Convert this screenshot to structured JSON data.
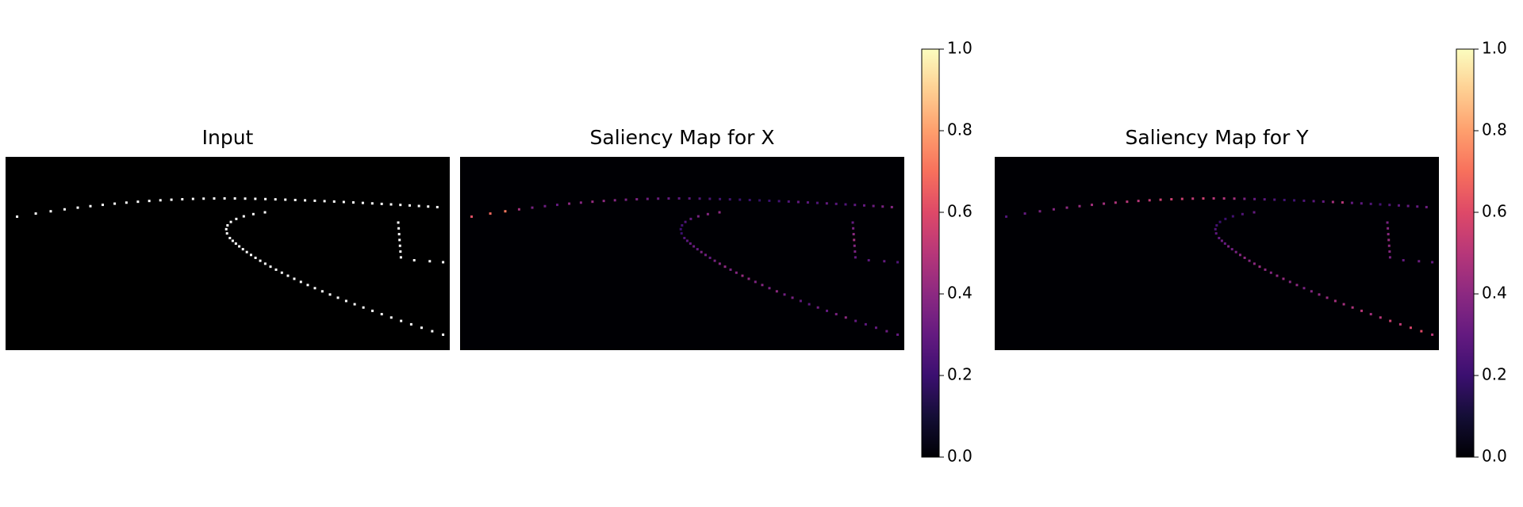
{
  "chart_data": [
    {
      "type": "image",
      "title": "Input",
      "color": "#ffffff"
    },
    {
      "type": "heatmap",
      "title": "Saliency Map for X",
      "colormap": "magma",
      "clim": [
        0,
        1
      ],
      "ticks": [
        {
          "value": 0,
          "label": "0.0"
        },
        0.2,
        0.4,
        0.6,
        0.8,
        {
          "value": 1,
          "label": "1.0"
        }
      ],
      "values": [
        0.62,
        0.68,
        0.72,
        0.45,
        0.35,
        0.32,
        0.3,
        0.4,
        0.38,
        0.42,
        0.4,
        0.38,
        0.35,
        0.36,
        0.33,
        0.32,
        0.3,
        0.28,
        0.27,
        0.25,
        0.24,
        0.22,
        0.22,
        0.2,
        0.2,
        0.18,
        0.2,
        0.22,
        0.25,
        0.3,
        0.28,
        0.25,
        0.3,
        0.27,
        0.25,
        0.28,
        0.3,
        0.32,
        0.35,
        0.38,
        0.4,
        0.38,
        0.35,
        0.3,
        0.25,
        0.22,
        0.2,
        0.2,
        0.25,
        0.28,
        0.3,
        0.32,
        0.3,
        0.35,
        0.33,
        0.3,
        0.35,
        0.38,
        0.4,
        0.35,
        0.38,
        0.42,
        0.4,
        0.36,
        0.38,
        0.35,
        0.4,
        0.33,
        0.35,
        0.3,
        0.28,
        0.33,
        0.3,
        0.35,
        0.4,
        0.3,
        0.28,
        0.3,
        0.32,
        0.3,
        0.3,
        0.35,
        0.4,
        0.45,
        0.38,
        0.35,
        0.3,
        0.28,
        0.3,
        0.25
      ]
    },
    {
      "type": "heatmap",
      "title": "Saliency Map for Y",
      "colormap": "magma",
      "clim": [
        0,
        1
      ],
      "ticks": [
        {
          "value": 0,
          "label": "0.0"
        },
        0.2,
        0.4,
        0.6,
        0.8,
        {
          "value": 1,
          "label": "1.0"
        }
      ],
      "values": [
        0.25,
        0.3,
        0.35,
        0.38,
        0.4,
        0.42,
        0.45,
        0.45,
        0.48,
        0.5,
        0.5,
        0.52,
        0.55,
        0.55,
        0.55,
        0.52,
        0.55,
        0.5,
        0.48,
        0.45,
        0.35,
        0.3,
        0.28,
        0.25,
        0.22,
        0.22,
        0.25,
        0.28,
        0.3,
        0.45,
        0.5,
        0.3,
        0.28,
        0.25,
        0.22,
        0.25,
        0.28,
        0.3,
        0.3,
        0.32,
        0.3,
        0.25,
        0.22,
        0.2,
        0.2,
        0.22,
        0.25,
        0.28,
        0.3,
        0.32,
        0.3,
        0.35,
        0.33,
        0.35,
        0.38,
        0.4,
        0.38,
        0.4,
        0.42,
        0.4,
        0.38,
        0.4,
        0.42,
        0.38,
        0.4,
        0.35,
        0.38,
        0.4,
        0.42,
        0.45,
        0.45,
        0.48,
        0.5,
        0.45,
        0.5,
        0.55,
        0.52,
        0.58,
        0.6,
        0.5,
        0.35,
        0.38,
        0.4,
        0.42,
        0.4,
        0.38,
        0.35,
        0.3,
        0.32,
        0.3
      ]
    }
  ]
}
